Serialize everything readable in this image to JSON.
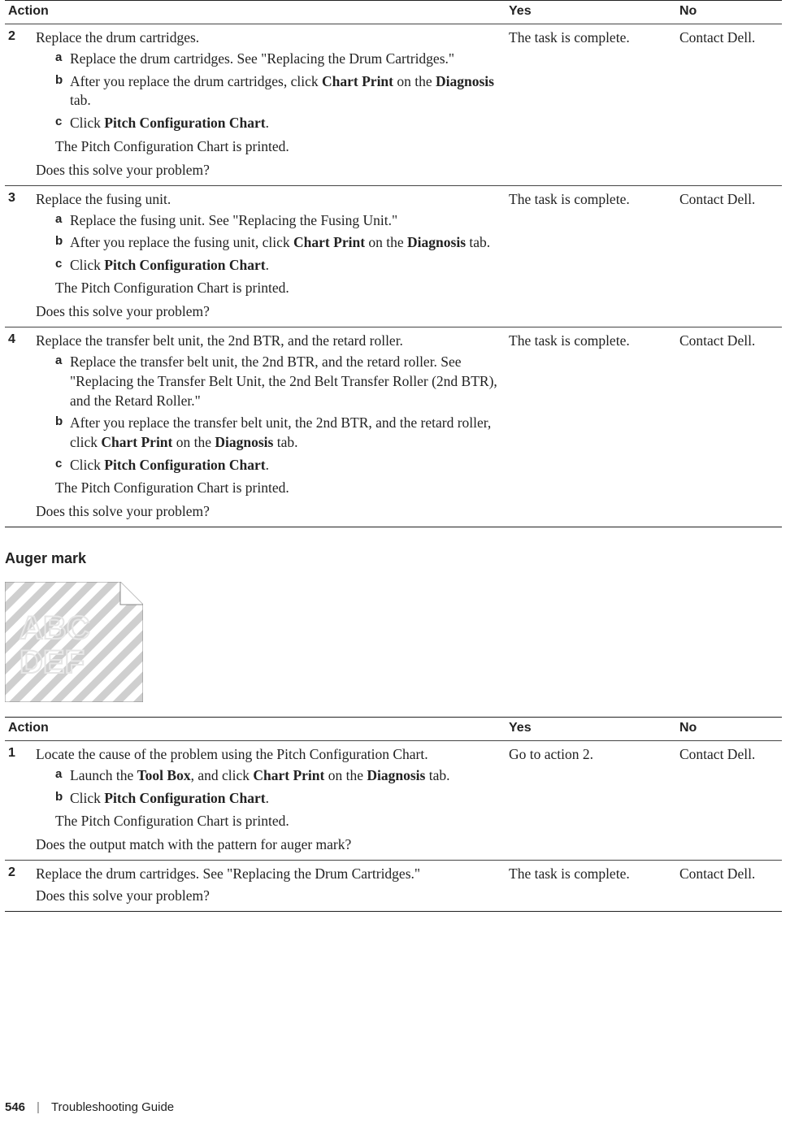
{
  "headers": {
    "action": "Action",
    "yes": "Yes",
    "no": "No"
  },
  "table1": {
    "rows": [
      {
        "num": "2",
        "intro": "Replace the drum cartridges.",
        "subs": [
          {
            "lab": "a",
            "parts": [
              {
                "t": "Replace the drum cartridges. See \"Replacing the Drum Cartridges.\""
              }
            ]
          },
          {
            "lab": "b",
            "parts": [
              {
                "t": "After you replace the drum cartridges, click "
              },
              {
                "t": "Chart Print",
                "b": true
              },
              {
                "t": " on the "
              },
              {
                "t": "Diagnosis",
                "b": true
              },
              {
                "t": " tab."
              }
            ]
          },
          {
            "lab": "c",
            "parts": [
              {
                "t": "Click "
              },
              {
                "t": "Pitch Configuration Chart",
                "b": true
              },
              {
                "t": "."
              }
            ]
          }
        ],
        "note": "The Pitch Configuration Chart is printed.",
        "q": "Does this solve your problem?",
        "yes": "The task is complete.",
        "no": "Contact Dell."
      },
      {
        "num": "3",
        "intro": "Replace the fusing unit.",
        "subs": [
          {
            "lab": "a",
            "parts": [
              {
                "t": "Replace the fusing unit. See \"Replacing the Fusing Unit.\""
              }
            ]
          },
          {
            "lab": "b",
            "parts": [
              {
                "t": "After you replace the fusing unit, click "
              },
              {
                "t": "Chart Print",
                "b": true
              },
              {
                "t": " on the "
              },
              {
                "t": "Diagnosis",
                "b": true
              },
              {
                "t": " tab."
              }
            ]
          },
          {
            "lab": "c",
            "parts": [
              {
                "t": "Click "
              },
              {
                "t": "Pitch Configuration Chart",
                "b": true
              },
              {
                "t": "."
              }
            ]
          }
        ],
        "note": "The Pitch Configuration Chart is printed.",
        "q": "Does this solve your problem?",
        "yes": "The task is complete.",
        "no": "Contact Dell."
      },
      {
        "num": "4",
        "intro": "Replace the transfer belt unit, the 2nd BTR, and the retard roller.",
        "subs": [
          {
            "lab": "a",
            "parts": [
              {
                "t": "Replace the transfer belt unit, the 2nd BTR, and the retard roller. See \"Replacing the Transfer Belt Unit, the 2nd Belt Transfer Roller (2nd BTR), and the Retard Roller.\""
              }
            ]
          },
          {
            "lab": "b",
            "parts": [
              {
                "t": "After you replace the transfer belt unit, the 2nd BTR, and the retard roller, click "
              },
              {
                "t": "Chart Print",
                "b": true
              },
              {
                "t": " on the "
              },
              {
                "t": "Diagnosis",
                "b": true
              },
              {
                "t": " tab."
              }
            ]
          },
          {
            "lab": "c",
            "parts": [
              {
                "t": "Click "
              },
              {
                "t": "Pitch Configuration Chart",
                "b": true
              },
              {
                "t": "."
              }
            ]
          }
        ],
        "note": "The Pitch Configuration Chart is printed.",
        "q": "Does this solve your problem?",
        "yes": "The task is complete.",
        "no": "Contact Dell."
      }
    ]
  },
  "section2_title": "Auger mark",
  "illus": {
    "stripe_color": "#cfcfcf",
    "bg_color": "#ffffff",
    "text_color": "#e6e6e6",
    "line1": "ABC",
    "line2": "DEF"
  },
  "table2": {
    "rows": [
      {
        "num": "1",
        "intro": "Locate the cause of the problem using the Pitch Configuration Chart.",
        "subs": [
          {
            "lab": "a",
            "parts": [
              {
                "t": "Launch the "
              },
              {
                "t": "Tool Box",
                "b": true
              },
              {
                "t": ", and click "
              },
              {
                "t": "Chart Print",
                "b": true
              },
              {
                "t": " on the "
              },
              {
                "t": "Diagnosis",
                "b": true
              },
              {
                "t": " tab."
              }
            ]
          },
          {
            "lab": "b",
            "parts": [
              {
                "t": "Click "
              },
              {
                "t": "Pitch Configuration Chart",
                "b": true
              },
              {
                "t": "."
              }
            ]
          }
        ],
        "note": "The Pitch Configuration Chart is printed.",
        "q": "Does the output match with the pattern for auger mark?",
        "yes": "Go to action 2.",
        "no": "Contact Dell."
      },
      {
        "num": "2",
        "intro": "Replace the drum cartridges. See \"Replacing the Drum Cartridges.\"",
        "subs": [],
        "note": "",
        "q": "Does this solve your problem?",
        "yes": "The task is complete.",
        "no": "Contact Dell."
      }
    ]
  },
  "footer": {
    "page": "546",
    "title": "Troubleshooting Guide"
  }
}
